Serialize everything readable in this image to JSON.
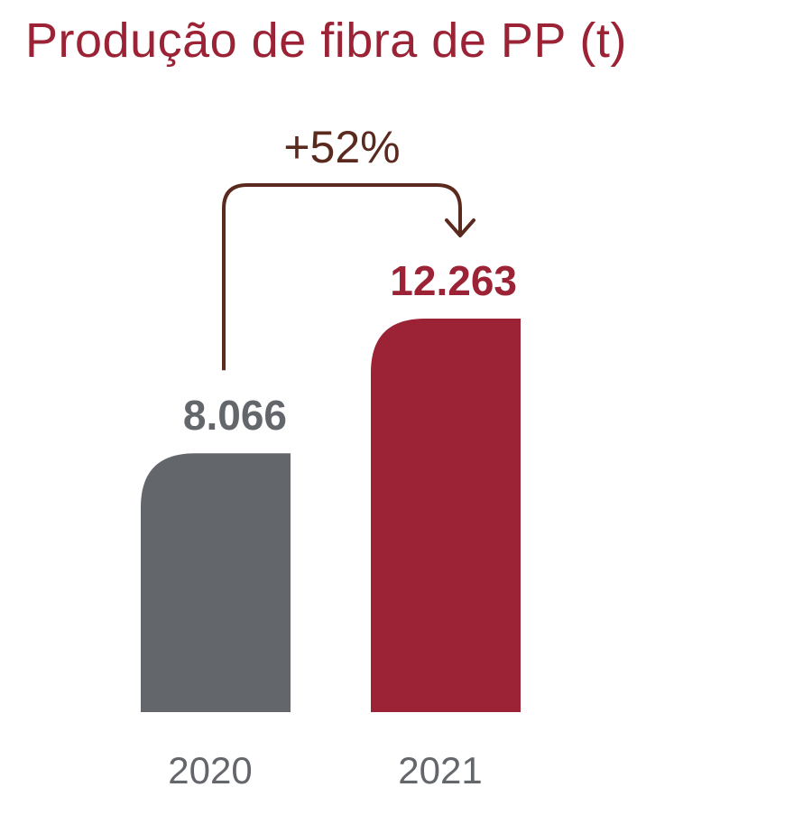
{
  "colors": {
    "title": "#9b2335",
    "bar_2020": "#63666a",
    "bar_2021": "#9b2335",
    "label_2020": "#63666a",
    "label_2021": "#9b2335",
    "tick": "#63666a",
    "arrow": "#5a2a1e"
  },
  "chart_data": {
    "type": "bar",
    "title": "Produção de fibra de PP (t)",
    "categories": [
      "2020",
      "2021"
    ],
    "values": [
      8066,
      12263
    ],
    "value_labels": [
      "8.066",
      "12.263"
    ],
    "ylim": [
      0,
      12263
    ],
    "grid": false,
    "annotation": {
      "text": "+52%",
      "from_category": "2020",
      "to_category": "2021"
    }
  }
}
